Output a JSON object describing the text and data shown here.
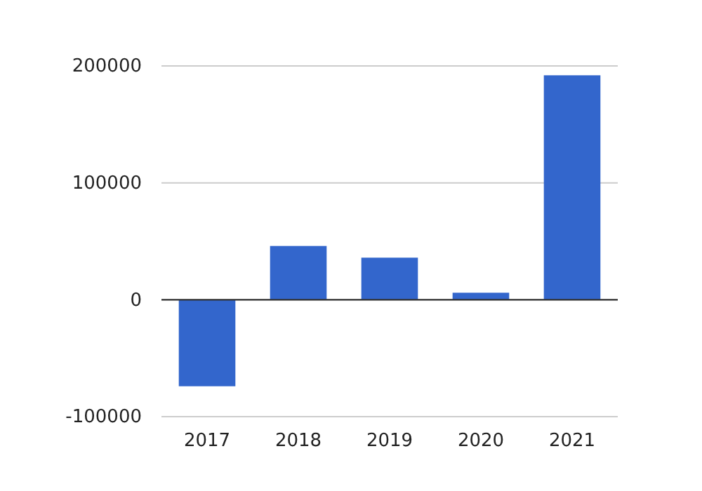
{
  "chart_data": {
    "type": "bar",
    "categories": [
      "2017",
      "2018",
      "2019",
      "2020",
      "2021"
    ],
    "values": [
      -74000,
      46000,
      36000,
      6000,
      192000
    ],
    "color": "#3366cc",
    "ylim": [
      -100000,
      200000
    ],
    "yticks": [
      -100000,
      0,
      100000,
      200000
    ],
    "grid": "y"
  }
}
